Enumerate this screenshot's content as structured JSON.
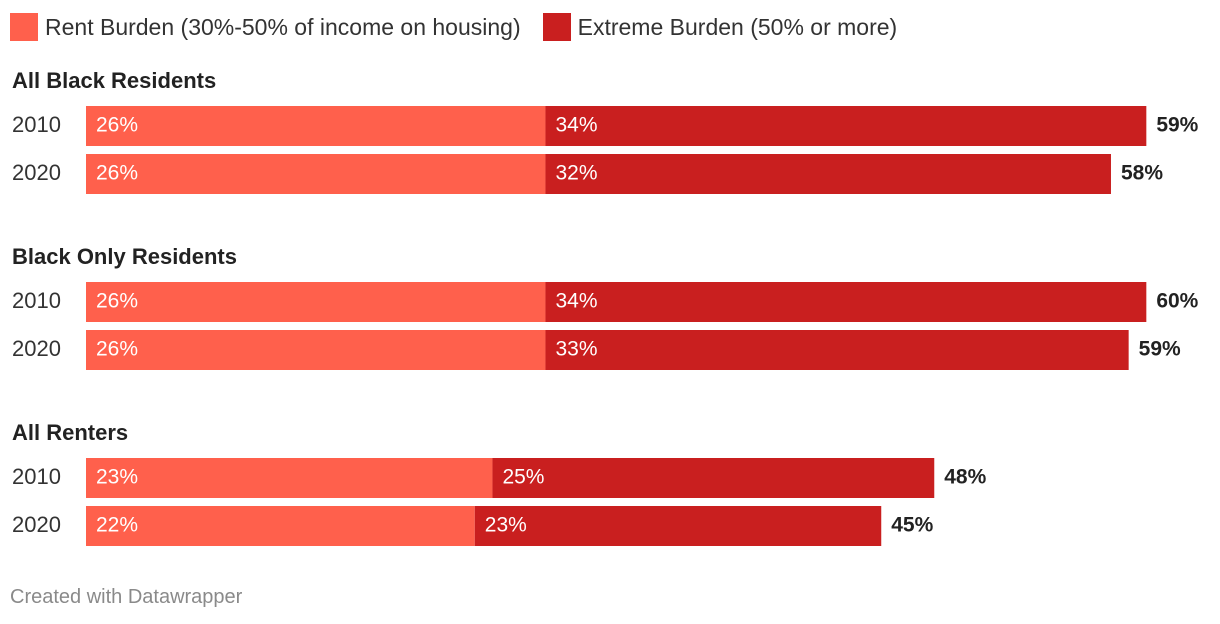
{
  "chart_data": {
    "type": "bar",
    "orientation": "horizontal",
    "stacked": true,
    "legend": [
      {
        "name": "Rent Burden (30%-50% of income on housing)",
        "color": "#ff604c"
      },
      {
        "name": "Extreme Burden (50% or more)",
        "color": "#c91f1f"
      }
    ],
    "groups": [
      {
        "title": "All Black Residents",
        "rows": [
          {
            "label": "2010",
            "values": [
              26,
              34
            ],
            "labels": [
              "26%",
              "34%"
            ],
            "total": "59%"
          },
          {
            "label": "2020",
            "values": [
              26,
              32
            ],
            "labels": [
              "26%",
              "32%"
            ],
            "total": "58%"
          }
        ]
      },
      {
        "title": "Black Only Residents",
        "rows": [
          {
            "label": "2010",
            "values": [
              26,
              34
            ],
            "labels": [
              "26%",
              "34%"
            ],
            "total": "60%"
          },
          {
            "label": "2020",
            "values": [
              26,
              33
            ],
            "labels": [
              "26%",
              "33%"
            ],
            "total": "59%"
          }
        ]
      },
      {
        "title": "All Renters",
        "rows": [
          {
            "label": "2010",
            "values": [
              23,
              25
            ],
            "labels": [
              "23%",
              "25%"
            ],
            "total": "48%"
          },
          {
            "label": "2020",
            "values": [
              22,
              23
            ],
            "labels": [
              "22%",
              "23%"
            ],
            "total": "45%"
          }
        ]
      }
    ],
    "xlim": [
      0,
      61
    ]
  },
  "footer": "Created with Datawrapper"
}
